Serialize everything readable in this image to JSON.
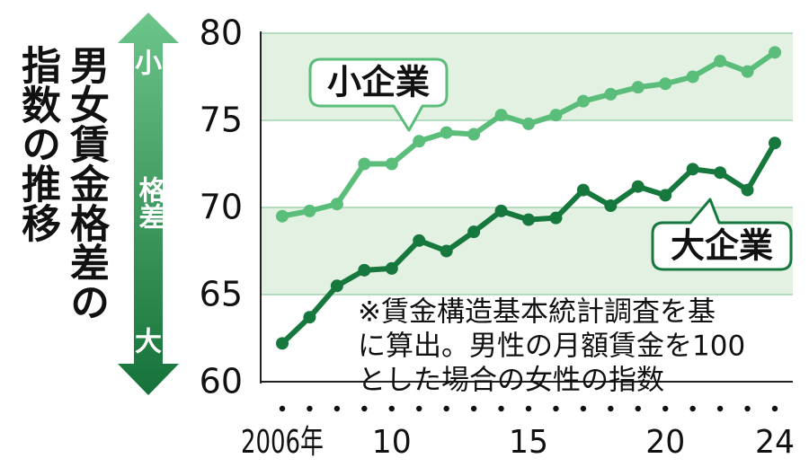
{
  "chart_data": {
    "type": "line",
    "title": "男女賃金格差の指数の推移",
    "x": [
      2006,
      2007,
      2008,
      2009,
      2010,
      2011,
      2012,
      2013,
      2014,
      2015,
      2016,
      2017,
      2018,
      2019,
      2020,
      2021,
      2022,
      2023,
      2024
    ],
    "xlim": [
      2006,
      2024
    ],
    "xticks": [
      {
        "value": 2006,
        "label": "2006年"
      },
      {
        "value": 2010,
        "label": "10"
      },
      {
        "value": 2015,
        "label": "15"
      },
      {
        "value": 2020,
        "label": "20"
      },
      {
        "value": 2024,
        "label": "24"
      }
    ],
    "ylim": [
      60,
      80
    ],
    "yticks": [
      60,
      65,
      70,
      75,
      80
    ],
    "grid": true,
    "bands": [
      [
        65,
        70
      ],
      [
        75,
        80
      ]
    ],
    "band_color": "#e2f1e2",
    "series": [
      {
        "name": "小企業",
        "color": "#5bbd7a",
        "values": [
          69.5,
          69.8,
          70.2,
          72.5,
          72.5,
          73.8,
          74.3,
          74.2,
          75.3,
          74.8,
          75.3,
          76.1,
          76.5,
          76.9,
          77.1,
          77.5,
          78.4,
          77.8,
          78.9
        ]
      },
      {
        "name": "大企業",
        "color": "#16783c",
        "values": [
          62.2,
          63.7,
          65.5,
          66.4,
          66.5,
          68.1,
          67.5,
          68.6,
          69.8,
          69.3,
          69.4,
          71.0,
          70.1,
          71.2,
          70.7,
          72.2,
          72.0,
          71.0,
          73.7
        ]
      }
    ],
    "arrow_labels": [
      "小",
      "格差",
      "大"
    ],
    "note": [
      "※賃金構造基本統計調査を基",
      "に算出。男性の月額賃金を100",
      "とした場合の女性の指数"
    ]
  }
}
